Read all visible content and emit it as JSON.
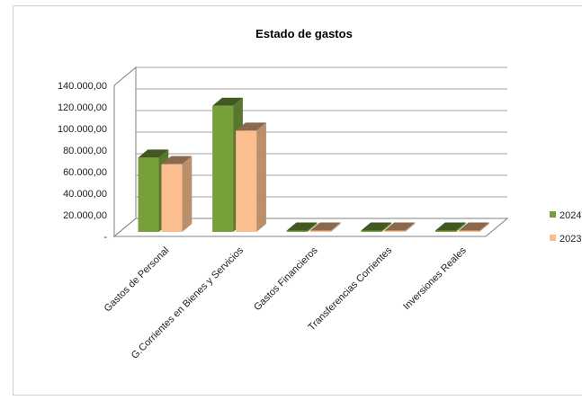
{
  "chart_data": {
    "type": "bar",
    "title": "Estado de gastos",
    "categories": [
      "Gastos de Personal",
      "G.Corrientes en Bienes y Servicios",
      "Gastos Financieros",
      "Transferencias Corrientes",
      "Inversiones Reales"
    ],
    "series": [
      {
        "name": "2024",
        "values": [
          73000,
          121000,
          300,
          400,
          3500
        ],
        "color": "#77a03b"
      },
      {
        "name": "2023",
        "values": [
          67000,
          98000,
          300,
          400,
          3800
        ],
        "color": "#fbbf8f"
      }
    ],
    "yticks": [
      "-",
      "20.000,00",
      "40.000,00",
      "60.000,00",
      "80.000,00",
      "100.000,00",
      "120.000,00",
      "140.000,00"
    ],
    "ylim": [
      0,
      140000
    ],
    "grid": true,
    "legend_position": "right",
    "is_3d": true
  }
}
